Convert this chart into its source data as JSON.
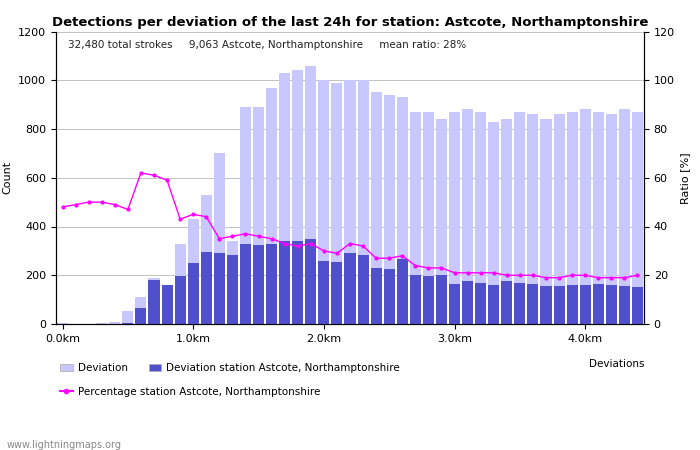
{
  "title": "Detections per deviation of the last 24h for station: Astcote, Northamptonshire",
  "subtitle": "32,480 total strokes     9,063 Astcote, Northamptonshire     mean ratio: 28%",
  "xlabel_ticks": [
    "0.0km",
    "1.0km",
    "2.0km",
    "3.0km",
    "4.0km"
  ],
  "xtick_positions": [
    0,
    10,
    20,
    30,
    40
  ],
  "ylabel_left": "Count",
  "ylabel_right": "Ratio [%]",
  "ylim_left": [
    0,
    1200
  ],
  "ylim_right": [
    0,
    120
  ],
  "yticks_left": [
    0,
    200,
    400,
    600,
    800,
    1000,
    1200
  ],
  "yticks_right": [
    0,
    20,
    40,
    60,
    80,
    100,
    120
  ],
  "watermark": "www.lightningmaps.org",
  "legend_label_all": "Deviation",
  "legend_label_station": "Deviation station Astcote, Northamptonshire",
  "legend_label_line": "Percentage station Astcote, Northamptonshire",
  "legend_extra": "Deviations",
  "deviation_all": [
    5,
    2,
    1,
    3,
    10,
    55,
    110,
    190,
    160,
    330,
    430,
    530,
    700,
    340,
    890,
    890,
    970,
    1030,
    1040,
    1060,
    1000,
    990,
    1000,
    1000,
    950,
    940,
    930,
    870,
    870,
    840,
    870,
    880,
    870,
    830,
    840,
    870,
    860,
    840,
    860,
    870,
    880,
    870,
    860,
    880,
    870
  ],
  "deviation_station": [
    0,
    0,
    0,
    1,
    2,
    4,
    65,
    180,
    160,
    195,
    250,
    295,
    290,
    285,
    330,
    325,
    330,
    340,
    340,
    350,
    260,
    255,
    290,
    285,
    230,
    225,
    265,
    200,
    195,
    200,
    165,
    175,
    170,
    160,
    175,
    170,
    165,
    155,
    155,
    160,
    160,
    165,
    160,
    155,
    150
  ],
  "ratio_pct": [
    48,
    49,
    50,
    50,
    49,
    47,
    62,
    61,
    59,
    43,
    45,
    44,
    35,
    36,
    37,
    36,
    35,
    33,
    32,
    33,
    30,
    29,
    33,
    32,
    27,
    27,
    28,
    24,
    23,
    23,
    21,
    21,
    21,
    21,
    20,
    20,
    20,
    19,
    19,
    20,
    20,
    19,
    19,
    19,
    20
  ],
  "n_bars": 45,
  "bar_width": 0.85,
  "color_all": "#c8c8ff",
  "color_station": "#5050cc",
  "color_line": "#ff00ff",
  "background_color": "#ffffff",
  "grid_color": "#aaaaaa",
  "figwidth": 7.0,
  "figheight": 4.5,
  "dpi": 100
}
